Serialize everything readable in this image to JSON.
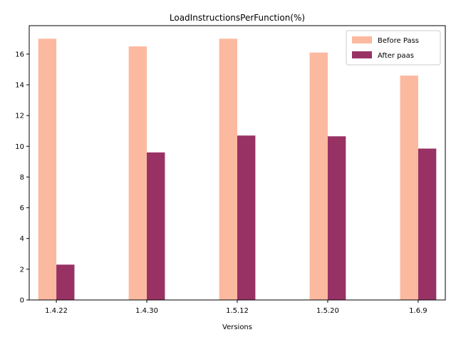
{
  "chart_data": {
    "type": "bar",
    "title": "LoadInstructionsPerFunction(%)",
    "xlabel": "Versions",
    "ylabel": "",
    "categories": [
      "1.4.22",
      "1.4.30",
      "1.5.12",
      "1.5.20",
      "1.6.9"
    ],
    "series": [
      {
        "name": "Before Pass",
        "color": "#fbb9a0",
        "values": [
          17.0,
          16.5,
          17.0,
          16.1,
          14.6
        ]
      },
      {
        "name": "After paas",
        "color": "#993264",
        "values": [
          2.3,
          9.6,
          10.7,
          10.65,
          9.85
        ]
      }
    ],
    "ylim": [
      0,
      17.85
    ],
    "yticks": [
      0,
      2,
      4,
      6,
      8,
      10,
      12,
      14,
      16
    ],
    "grid": false,
    "legend_position": "top-right"
  }
}
